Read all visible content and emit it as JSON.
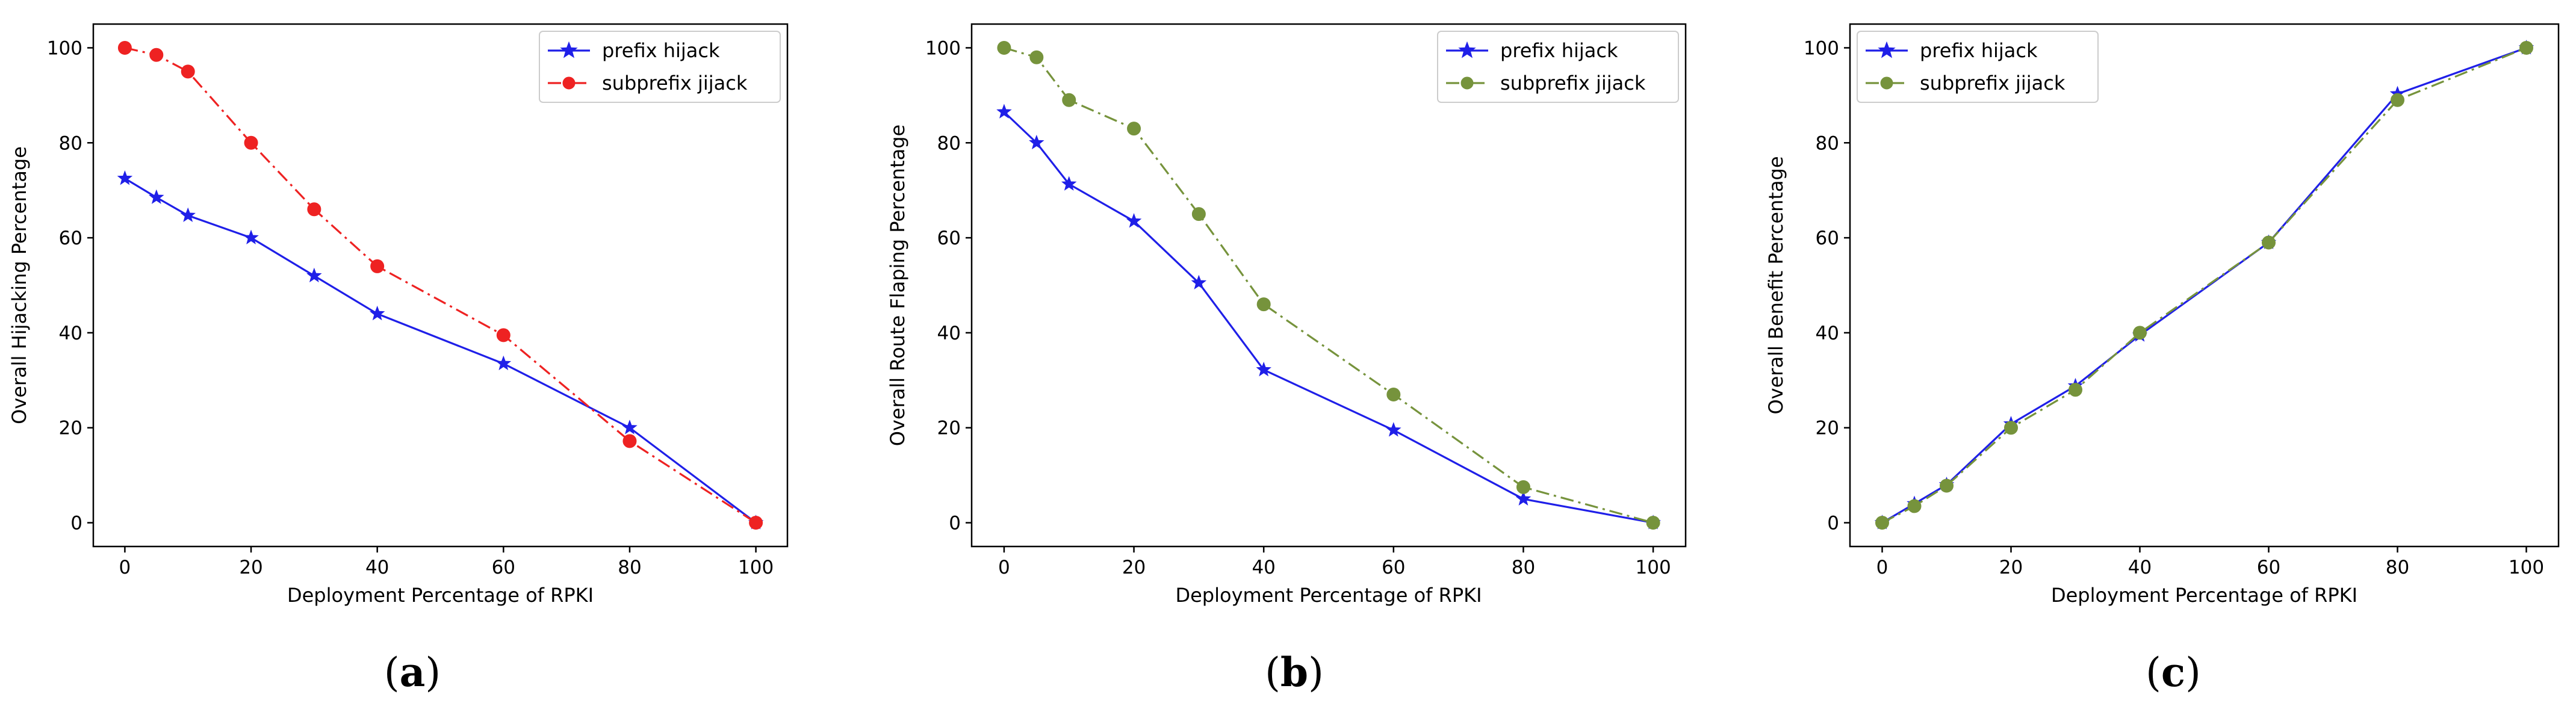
{
  "chart_data": [
    {
      "type": "line",
      "caption_letter": "a",
      "caption_open": "(",
      "caption_close": ")",
      "xlabel": "Deployment Percentage of RPKI",
      "ylabel": "Overall Hijacking Percentage",
      "xlim": [
        -5,
        105
      ],
      "ylim": [
        -5,
        105
      ],
      "xticks": [
        0,
        20,
        40,
        60,
        80,
        100
      ],
      "yticks": [
        0,
        20,
        40,
        60,
        80,
        100
      ],
      "legend_position": "top-right",
      "series": [
        {
          "name": "prefix hijack",
          "color": "#1f1fe8",
          "marker": "star",
          "linestyle": "solid",
          "x": [
            0,
            5,
            10,
            20,
            30,
            40,
            60,
            80,
            100
          ],
          "y": [
            72.5,
            68.5,
            64.7,
            60,
            52,
            44,
            33.5,
            20,
            0
          ]
        },
        {
          "name": "subprefix jijack",
          "color": "#ee2222",
          "marker": "circle",
          "linestyle": "dashdot",
          "x": [
            0,
            5,
            10,
            20,
            30,
            40,
            60,
            80,
            100
          ],
          "y": [
            100,
            98.5,
            95,
            80,
            66,
            54,
            39.5,
            17.2,
            0
          ]
        }
      ]
    },
    {
      "type": "line",
      "caption_letter": "b",
      "caption_open": "(",
      "caption_close": ")",
      "xlabel": "Deployment Percentage of RPKI",
      "ylabel": "Overall Route Flaping Percentage",
      "xlim": [
        -5,
        105
      ],
      "ylim": [
        -5,
        105
      ],
      "xticks": [
        0,
        20,
        40,
        60,
        80,
        100
      ],
      "yticks": [
        0,
        20,
        40,
        60,
        80,
        100
      ],
      "legend_position": "top-right",
      "series": [
        {
          "name": "prefix hijack",
          "color": "#1f1fe8",
          "marker": "star",
          "linestyle": "solid",
          "x": [
            0,
            5,
            10,
            20,
            30,
            40,
            60,
            80,
            100
          ],
          "y": [
            86.5,
            80,
            71.3,
            63.5,
            50.5,
            32.2,
            19.5,
            5,
            0
          ]
        },
        {
          "name": "subprefix jijack",
          "color": "#76933c",
          "marker": "circle",
          "linestyle": "dashdot",
          "x": [
            0,
            5,
            10,
            20,
            30,
            40,
            60,
            80,
            100
          ],
          "y": [
            100,
            98,
            89,
            83,
            65,
            46,
            27,
            7.5,
            0
          ]
        }
      ]
    },
    {
      "type": "line",
      "caption_letter": "c",
      "caption_open": "(",
      "caption_close": ")",
      "xlabel": "Deployment Percentage of RPKI",
      "ylabel": "Overall Benefit Percentage",
      "xlim": [
        -5,
        105
      ],
      "ylim": [
        -5,
        105
      ],
      "xticks": [
        0,
        20,
        40,
        60,
        80,
        100
      ],
      "yticks": [
        0,
        20,
        40,
        60,
        80,
        100
      ],
      "legend_position": "top-left",
      "series": [
        {
          "name": "prefix hijack",
          "color": "#1f1fe8",
          "marker": "star",
          "linestyle": "solid",
          "x": [
            0,
            5,
            10,
            20,
            30,
            40,
            60,
            80,
            100
          ],
          "y": [
            0,
            4,
            8,
            20.8,
            28.8,
            39.5,
            59,
            90.3,
            100
          ]
        },
        {
          "name": "subprefix jijack",
          "color": "#76933c",
          "marker": "circle",
          "linestyle": "dashdot",
          "x": [
            0,
            5,
            10,
            20,
            30,
            40,
            60,
            80,
            100
          ],
          "y": [
            0,
            3.5,
            7.8,
            20,
            28,
            40,
            59,
            89,
            100
          ]
        }
      ]
    }
  ]
}
